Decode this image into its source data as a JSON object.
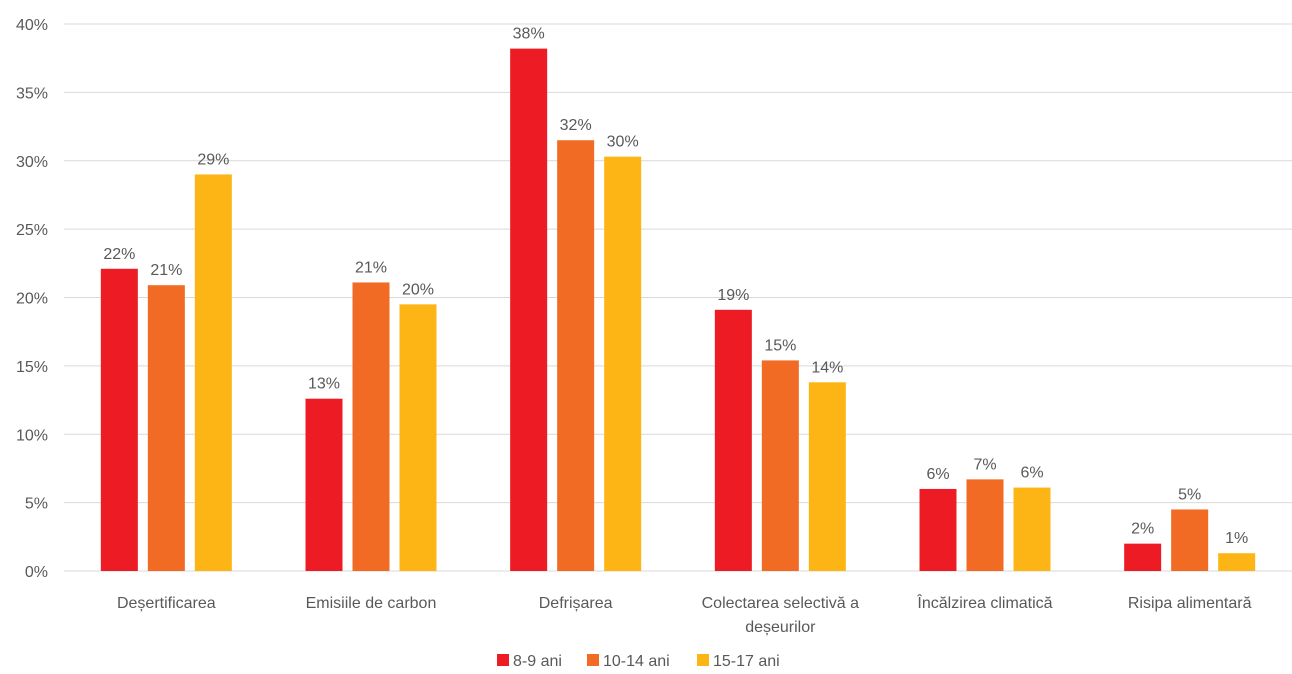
{
  "chart_data": {
    "type": "bar",
    "categories": [
      [
        "Deșertificarea"
      ],
      [
        "Emisiile de carbon"
      ],
      [
        "Defrișarea"
      ],
      [
        "Colectarea selectivă a",
        "deșeurilor"
      ],
      [
        "Încălzirea climatică"
      ],
      [
        "Risipa alimentară"
      ]
    ],
    "series": [
      {
        "name": "8-9 ani",
        "color": "#ED1C24",
        "values": [
          22.1,
          12.6,
          38.2,
          19.1,
          6.0,
          2.0
        ],
        "labels": [
          "22%",
          "13%",
          "38%",
          "19%",
          "6%",
          "2%"
        ]
      },
      {
        "name": "10-14 ani",
        "color": "#F26B24",
        "values": [
          20.9,
          21.1,
          31.5,
          15.4,
          6.7,
          4.5
        ],
        "labels": [
          "21%",
          "21%",
          "32%",
          "15%",
          "7%",
          "5%"
        ]
      },
      {
        "name": "15-17 ani",
        "color": "#FDB515",
        "values": [
          29.0,
          19.5,
          30.3,
          13.8,
          6.1,
          1.3
        ],
        "labels": [
          "29%",
          "20%",
          "30%",
          "14%",
          "6%",
          "1%"
        ]
      }
    ],
    "y_ticks": [
      0,
      5,
      10,
      15,
      20,
      25,
      30,
      35,
      40
    ],
    "y_tick_labels": [
      "0%",
      "5%",
      "10%",
      "15%",
      "20%",
      "25%",
      "30%",
      "35%",
      "40%"
    ],
    "ylim": [
      0,
      40
    ],
    "grid": true,
    "gridline_color": "#D9D9D9",
    "legend_position": "bottom"
  }
}
